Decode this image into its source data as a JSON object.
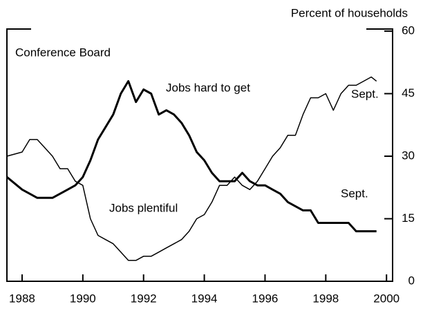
{
  "chart_data": {
    "type": "line",
    "y_axis_title": "Percent of households",
    "annotations": [
      "Conference Board",
      "Jobs hard to get",
      "Sept.",
      "Jobs plentiful",
      "Sept."
    ],
    "x": [
      1987.5,
      1988,
      1988.25,
      1988.5,
      1988.75,
      1989,
      1989.25,
      1989.5,
      1989.75,
      1990,
      1990.25,
      1990.5,
      1990.75,
      1991,
      1991.25,
      1991.5,
      1991.75,
      1992,
      1992.25,
      1992.5,
      1992.75,
      1993,
      1993.25,
      1993.5,
      1993.75,
      1994,
      1994.25,
      1994.5,
      1994.75,
      1995,
      1995.25,
      1995.5,
      1995.75,
      1996,
      1996.25,
      1996.5,
      1996.75,
      1997,
      1997.25,
      1997.5,
      1997.75,
      1998,
      1998.25,
      1998.5,
      1998.75,
      1999,
      1999.25,
      1999.5,
      1999.67
    ],
    "series": [
      {
        "name": "Jobs hard to get",
        "color": "#000000",
        "width": 3,
        "values": [
          25,
          22,
          21,
          20,
          20,
          20,
          21,
          22,
          23,
          25,
          29,
          34,
          37,
          40,
          45,
          48,
          43,
          46,
          45,
          40,
          41,
          40,
          38,
          35,
          31,
          29,
          26,
          24,
          24,
          24,
          26,
          24,
          23,
          23,
          22,
          21,
          19,
          18,
          17,
          17,
          14,
          14,
          14,
          14,
          14,
          12,
          12,
          12,
          12
        ]
      },
      {
        "name": "Jobs plentiful",
        "color": "#000000",
        "width": 1.5,
        "values": [
          30,
          31,
          34,
          34,
          32,
          30,
          27,
          27,
          24,
          23,
          15,
          11,
          10,
          9,
          7,
          5,
          5,
          6,
          6,
          7,
          8,
          9,
          10,
          12,
          15,
          16,
          19,
          23,
          23,
          25,
          23,
          22,
          24,
          27,
          30,
          32,
          35,
          35,
          40,
          44,
          44,
          45,
          41,
          45,
          47,
          47,
          48,
          49,
          48
        ]
      }
    ],
    "xlim": [
      1987.5,
      2000.2
    ],
    "xticks": [
      1988,
      1990,
      1992,
      1994,
      1996,
      1998,
      2000
    ],
    "ylim": [
      0,
      60
    ],
    "yticks": [
      0,
      15,
      30,
      45,
      60
    ]
  }
}
